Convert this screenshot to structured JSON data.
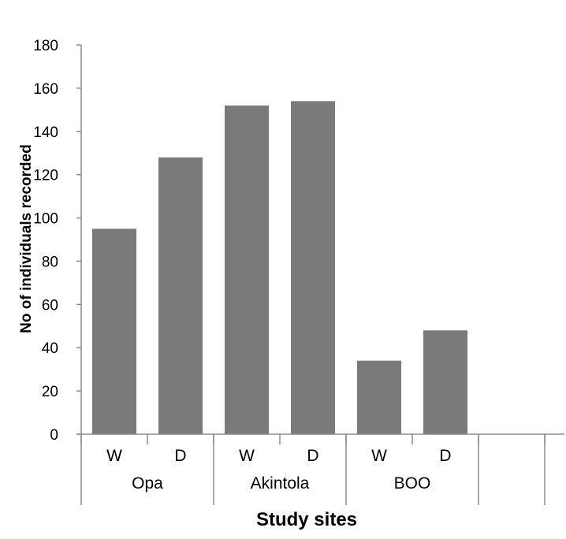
{
  "chart_data": {
    "type": "bar",
    "xlabel": "Study sites",
    "ylabel": "No of individuals recorded",
    "ylim": [
      0,
      180
    ],
    "yticks": [
      0,
      20,
      40,
      60,
      80,
      100,
      120,
      140,
      160,
      180
    ],
    "groups": [
      {
        "name": "Opa",
        "categories": [
          "W",
          "D"
        ],
        "values": [
          95,
          128
        ]
      },
      {
        "name": "Akintola",
        "categories": [
          "W",
          "D"
        ],
        "values": [
          152,
          154
        ]
      },
      {
        "name": "BOO",
        "categories": [
          "W",
          "D"
        ],
        "values": [
          34,
          48
        ]
      }
    ],
    "bar_color": "#7a7a7a",
    "axis_color": "#8c8c8c",
    "grid": false
  }
}
